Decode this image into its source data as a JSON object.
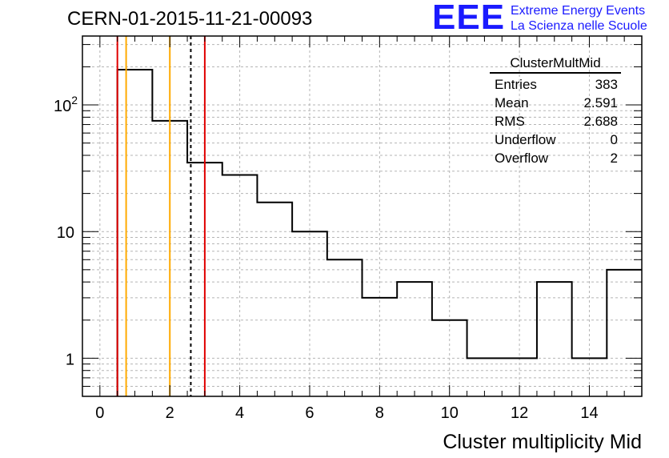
{
  "header": {
    "run_title": "CERN-01-2015-11-21-00093",
    "logo_mark": "EEE",
    "logo_line1": "Extreme Energy Events",
    "logo_line2": "La Scienza nelle Scuole"
  },
  "stats_box": {
    "title": "ClusterMultMid",
    "rows": [
      {
        "label": "Entries",
        "value": "383"
      },
      {
        "label": "Mean",
        "value": "2.591"
      },
      {
        "label": "RMS",
        "value": "2.688"
      },
      {
        "label": "Underflow",
        "value": "0"
      },
      {
        "label": "Overflow",
        "value": "2"
      }
    ]
  },
  "chart_data": {
    "type": "histogram",
    "title": "",
    "xlabel": "Cluster multiplicity Mid",
    "ylabel": "",
    "x_scale": "linear",
    "y_scale": "log",
    "xlim": [
      -0.5,
      15.5
    ],
    "ylim": [
      0.5,
      350
    ],
    "grid": true,
    "x_ticks": [
      0,
      2,
      4,
      6,
      8,
      10,
      12,
      14
    ],
    "x_tick_labels": [
      "0",
      "2",
      "4",
      "6",
      "8",
      "10",
      "12",
      "14"
    ],
    "y_ticks": [
      1,
      10,
      100
    ],
    "y_tick_labels": [
      "1",
      "10",
      "10^2"
    ],
    "bins": [
      {
        "x0": 0.5,
        "x1": 1.5,
        "value": 190
      },
      {
        "x0": 1.5,
        "x1": 2.5,
        "value": 75
      },
      {
        "x0": 2.5,
        "x1": 3.5,
        "value": 35
      },
      {
        "x0": 3.5,
        "x1": 4.5,
        "value": 28
      },
      {
        "x0": 4.5,
        "x1": 5.5,
        "value": 17
      },
      {
        "x0": 5.5,
        "x1": 6.5,
        "value": 10
      },
      {
        "x0": 6.5,
        "x1": 7.5,
        "value": 6
      },
      {
        "x0": 7.5,
        "x1": 8.5,
        "value": 3
      },
      {
        "x0": 8.5,
        "x1": 9.5,
        "value": 4
      },
      {
        "x0": 9.5,
        "x1": 10.5,
        "value": 2
      },
      {
        "x0": 10.5,
        "x1": 12.5,
        "value": 1
      },
      {
        "x0": 12.5,
        "x1": 13.5,
        "value": 4
      },
      {
        "x0": 13.5,
        "x1": 14.5,
        "value": 1
      },
      {
        "x0": 14.5,
        "x1": 15.5,
        "value": 5
      }
    ],
    "reference_lines": [
      {
        "x": 0.5,
        "color": "#e00000",
        "style": "solid"
      },
      {
        "x": 0.75,
        "color": "#ffaa00",
        "style": "solid"
      },
      {
        "x": 2.0,
        "color": "#ffaa00",
        "style": "solid"
      },
      {
        "x": 2.6,
        "color": "#000000",
        "style": "dashed"
      },
      {
        "x": 3.0,
        "color": "#e00000",
        "style": "solid"
      }
    ]
  }
}
